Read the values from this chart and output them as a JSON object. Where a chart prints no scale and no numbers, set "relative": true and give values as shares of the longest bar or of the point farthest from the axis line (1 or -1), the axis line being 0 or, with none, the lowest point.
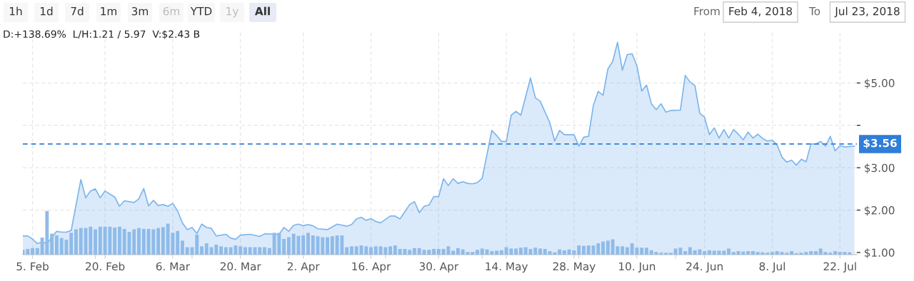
{
  "chart_data": [
    {
      "type": "area",
      "annotations": [
        "1h",
        "1d",
        "7d",
        "1m",
        "3m",
        "6m",
        "YTD",
        "1y",
        "All",
        "From",
        "Feb 4, 2018",
        "To",
        "Jul 23, 2018",
        "D:+138.69%  L/H:1.21 / 5.97  V:$2.43 B"
      ],
      "series": [
        {
          "color": "#7cb5ec",
          "x": [
            "2018-02-03",
            "2018-02-04",
            "2018-02-05",
            "2018-02-06",
            "2018-02-07",
            "2018-02-08",
            "2018-02-10",
            "2018-02-11",
            "2018-02-12",
            "2018-02-13",
            "2018-02-15",
            "2018-02-16",
            "2018-02-17",
            "2018-02-18",
            "2018-02-19",
            "2018-02-20",
            "2018-02-22",
            "2018-02-23",
            "2018-02-24",
            "2018-02-26",
            "2018-02-27",
            "2018-02-28",
            "2018-03-01",
            "2018-03-02",
            "2018-03-03",
            "2018-03-04",
            "2018-03-05",
            "2018-03-06",
            "2018-03-07",
            "2018-03-08",
            "2018-03-09",
            "2018-03-10",
            "2018-03-11",
            "2018-03-12",
            "2018-03-13",
            "2018-03-14",
            "2018-03-15",
            "2018-03-17",
            "2018-03-18",
            "2018-03-19",
            "2018-03-20",
            "2018-03-22",
            "2018-03-24",
            "2018-03-25",
            "2018-03-28",
            "2018-03-29",
            "2018-03-30",
            "2018-03-31",
            "2018-04-01",
            "2018-04-02",
            "2018-04-03",
            "2018-04-04",
            "2018-04-05",
            "2018-04-07",
            "2018-04-09",
            "2018-04-11",
            "2018-04-12",
            "2018-04-13",
            "2018-04-14",
            "2018-04-15",
            "2018-04-16",
            "2018-04-17",
            "2018-04-18",
            "2018-04-20",
            "2018-04-21",
            "2018-04-22",
            "2018-04-24",
            "2018-04-25",
            "2018-04-26",
            "2018-04-27",
            "2018-04-28",
            "2018-04-29",
            "2018-04-30",
            "2018-05-01",
            "2018-05-02",
            "2018-05-03",
            "2018-05-04",
            "2018-05-05",
            "2018-05-06",
            "2018-05-07",
            "2018-05-08",
            "2018-05-09",
            "2018-05-11",
            "2018-05-12",
            "2018-05-13",
            "2018-05-14",
            "2018-05-15",
            "2018-05-16",
            "2018-05-17",
            "2018-05-19",
            "2018-05-20",
            "2018-05-21",
            "2018-05-23",
            "2018-05-24",
            "2018-05-25",
            "2018-05-26",
            "2018-05-28",
            "2018-05-29",
            "2018-05-30",
            "2018-05-31",
            "2018-06-01",
            "2018-06-02",
            "2018-06-03",
            "2018-06-04",
            "2018-06-05",
            "2018-06-06",
            "2018-06-07",
            "2018-06-08",
            "2018-06-09",
            "2018-06-10",
            "2018-06-11",
            "2018-06-12",
            "2018-06-13",
            "2018-06-14",
            "2018-06-15",
            "2018-06-16",
            "2018-06-17",
            "2018-06-19",
            "2018-06-20",
            "2018-06-21",
            "2018-06-22",
            "2018-06-23",
            "2018-06-24",
            "2018-06-25",
            "2018-06-26",
            "2018-06-27",
            "2018-06-28",
            "2018-06-29",
            "2018-06-30",
            "2018-07-01",
            "2018-07-02",
            "2018-07-03",
            "2018-07-04",
            "2018-07-05",
            "2018-07-06",
            "2018-07-07",
            "2018-07-08",
            "2018-07-09",
            "2018-07-10",
            "2018-07-11",
            "2018-07-12",
            "2018-07-13",
            "2018-07-14",
            "2018-07-15",
            "2018-07-16",
            "2018-07-17",
            "2018-07-18",
            "2018-07-19",
            "2018-07-20",
            "2018-07-21",
            "2018-07-22",
            "2018-07-23",
            "2018-07-25"
          ],
          "values": [
            1.39,
            1.39,
            1.32,
            1.21,
            1.25,
            1.21,
            1.5,
            1.48,
            1.48,
            1.52,
            2.72,
            2.29,
            2.45,
            2.5,
            2.29,
            2.45,
            2.31,
            2.09,
            2.22,
            2.18,
            2.27,
            2.51,
            2.1,
            2.23,
            2.11,
            2.13,
            2.09,
            2.16,
            1.98,
            1.7,
            1.54,
            1.59,
            1.45,
            1.67,
            1.59,
            1.57,
            1.39,
            1.43,
            1.34,
            1.31,
            1.41,
            1.43,
            1.38,
            1.44,
            1.43,
            1.59,
            1.5,
            1.64,
            1.67,
            1.63,
            1.66,
            1.63,
            1.56,
            1.54,
            1.67,
            1.62,
            1.66,
            1.79,
            1.83,
            1.76,
            1.8,
            1.73,
            1.7,
            1.86,
            1.86,
            1.79,
            2.13,
            2.2,
            1.94,
            2.09,
            2.12,
            2.32,
            2.32,
            2.74,
            2.58,
            2.74,
            2.63,
            2.67,
            2.63,
            2.62,
            2.65,
            2.75,
            3.88,
            3.76,
            3.62,
            3.62,
            4.24,
            4.33,
            4.24,
            5.12,
            4.65,
            4.57,
            4.06,
            3.63,
            3.88,
            3.78,
            3.78,
            3.51,
            3.72,
            3.74,
            4.47,
            4.8,
            4.71,
            5.33,
            5.51,
            5.96,
            5.3,
            5.67,
            5.69,
            5.41,
            4.81,
            4.95,
            4.51,
            4.37,
            4.51,
            4.31,
            4.35,
            4.36,
            5.18,
            5.02,
            4.94,
            4.29,
            4.19,
            3.78,
            3.94,
            3.7,
            3.9,
            3.7,
            3.9,
            3.79,
            3.66,
            3.84,
            3.7,
            3.79,
            3.69,
            3.63,
            3.65,
            3.54,
            3.25,
            3.13,
            3.18,
            3.06,
            3.2,
            3.14,
            3.56,
            3.56,
            3.62,
            3.51,
            3.74,
            3.4,
            3.52,
            3.49,
            3.51
          ]
        }
      ],
      "xlim": [
        "2018-02-03",
        "2018-07-25T12:00"
      ],
      "xticks": [
        {
          "value": "2018-02-05",
          "label": "5. Feb"
        },
        {
          "value": "2018-02-20",
          "label": "20. Feb"
        },
        {
          "value": "2018-03-06",
          "label": "6. Mar"
        },
        {
          "value": "2018-03-20",
          "label": "20. Mar"
        },
        {
          "value": "2018-04-02",
          "label": "2. Apr"
        },
        {
          "value": "2018-04-16",
          "label": "16. Apr"
        },
        {
          "value": "2018-04-30",
          "label": "30. Apr"
        },
        {
          "value": "2018-05-14",
          "label": "14. May"
        },
        {
          "value": "2018-05-28",
          "label": "28. May"
        },
        {
          "value": "2018-06-10",
          "label": "10. Jun"
        },
        {
          "value": "2018-06-24",
          "label": "24. Jun"
        },
        {
          "value": "2018-07-08",
          "label": "8. Jul"
        },
        {
          "value": "2018-07-22",
          "label": "22. Jul"
        }
      ],
      "ylim": [
        0.95,
        6.2
      ],
      "yticks": [
        {
          "value": 1,
          "label": "$1.00"
        },
        {
          "value": 2,
          "label": "$2.00"
        },
        {
          "value": 3,
          "label": "$3.00"
        },
        {
          "value": 4,
          "label": null
        },
        {
          "value": 5,
          "label": "$5.00"
        }
      ],
      "ref_lines": [
        {
          "axis": "y",
          "value": 3.56,
          "label": "$3.56",
          "color": "#2f7ed8",
          "line_style": "dashed"
        }
      ],
      "grid": true
    },
    {
      "type": "bar",
      "relative": true,
      "tick_labels": false,
      "color": "#8fbbe9",
      "xlim": [
        "2018-02-03",
        "2018-07-25T12:00"
      ],
      "x": [
        "2018-02-03",
        "2018-02-04",
        "2018-02-05",
        "2018-02-06",
        "2018-02-07",
        "2018-02-08",
        "2018-02-09",
        "2018-02-10",
        "2018-02-11",
        "2018-02-12",
        "2018-02-13",
        "2018-02-14",
        "2018-02-15",
        "2018-02-16",
        "2018-02-17",
        "2018-02-18",
        "2018-02-19",
        "2018-02-20",
        "2018-02-21",
        "2018-02-22",
        "2018-02-23",
        "2018-02-24",
        "2018-02-25",
        "2018-02-26",
        "2018-02-27",
        "2018-02-28",
        "2018-03-01",
        "2018-03-02",
        "2018-03-03",
        "2018-03-04",
        "2018-03-05",
        "2018-03-06",
        "2018-03-07",
        "2018-03-08",
        "2018-03-09",
        "2018-03-10",
        "2018-03-11",
        "2018-03-12",
        "2018-03-13",
        "2018-03-14",
        "2018-03-15",
        "2018-03-16",
        "2018-03-17",
        "2018-03-18",
        "2018-03-19",
        "2018-03-20",
        "2018-03-21",
        "2018-03-22",
        "2018-03-23",
        "2018-03-24",
        "2018-03-25",
        "2018-03-26",
        "2018-03-27",
        "2018-03-28",
        "2018-03-29",
        "2018-03-30",
        "2018-03-31",
        "2018-04-01",
        "2018-04-02",
        "2018-04-03",
        "2018-04-04",
        "2018-04-05",
        "2018-04-06",
        "2018-04-07",
        "2018-04-08",
        "2018-04-09",
        "2018-04-10",
        "2018-04-11",
        "2018-04-12",
        "2018-04-13",
        "2018-04-14",
        "2018-04-15",
        "2018-04-16",
        "2018-04-17",
        "2018-04-18",
        "2018-04-19",
        "2018-04-20",
        "2018-04-21",
        "2018-04-22",
        "2018-04-23",
        "2018-04-24",
        "2018-04-25",
        "2018-04-26",
        "2018-04-27",
        "2018-04-28",
        "2018-04-29",
        "2018-04-30",
        "2018-05-01",
        "2018-05-02",
        "2018-05-03",
        "2018-05-04",
        "2018-05-05",
        "2018-05-06",
        "2018-05-07",
        "2018-05-08",
        "2018-05-09",
        "2018-05-10",
        "2018-05-11",
        "2018-05-12",
        "2018-05-13",
        "2018-05-14",
        "2018-05-15",
        "2018-05-16",
        "2018-05-17",
        "2018-05-18",
        "2018-05-19",
        "2018-05-20",
        "2018-05-21",
        "2018-05-22",
        "2018-05-23",
        "2018-05-24",
        "2018-05-25",
        "2018-05-26",
        "2018-05-27",
        "2018-05-28",
        "2018-05-29",
        "2018-05-30",
        "2018-05-31",
        "2018-06-01",
        "2018-06-02",
        "2018-06-03",
        "2018-06-04",
        "2018-06-05",
        "2018-06-06",
        "2018-06-07",
        "2018-06-08",
        "2018-06-09",
        "2018-06-10",
        "2018-06-11",
        "2018-06-12",
        "2018-06-13",
        "2018-06-14",
        "2018-06-15",
        "2018-06-16",
        "2018-06-17",
        "2018-06-18",
        "2018-06-19",
        "2018-06-20",
        "2018-06-21",
        "2018-06-22",
        "2018-06-23",
        "2018-06-24",
        "2018-06-25",
        "2018-06-26",
        "2018-06-27",
        "2018-06-28",
        "2018-06-29",
        "2018-06-30",
        "2018-07-01",
        "2018-07-02",
        "2018-07-03",
        "2018-07-04",
        "2018-07-05",
        "2018-07-06",
        "2018-07-07",
        "2018-07-08",
        "2018-07-09",
        "2018-07-10",
        "2018-07-11",
        "2018-07-12",
        "2018-07-13",
        "2018-07-14",
        "2018-07-15",
        "2018-07-16",
        "2018-07-17",
        "2018-07-18",
        "2018-07-19",
        "2018-07-20",
        "2018-07-21",
        "2018-07-22",
        "2018-07-23",
        "2018-07-24"
      ],
      "values": [
        0.11,
        0.13,
        0.15,
        0.15,
        0.39,
        1,
        0.48,
        0.44,
        0.38,
        0.34,
        0.5,
        0.58,
        0.61,
        0.61,
        0.64,
        0.58,
        0.64,
        0.64,
        0.64,
        0.62,
        0.64,
        0.59,
        0.52,
        0.58,
        0.61,
        0.59,
        0.59,
        0.58,
        0.61,
        0.63,
        0.71,
        0.5,
        0.54,
        0.32,
        0.17,
        0.17,
        0.46,
        0.19,
        0.26,
        0.17,
        0.23,
        0.19,
        0.17,
        0.17,
        0.21,
        0.19,
        0.17,
        0.17,
        0.17,
        0.17,
        0.17,
        0.15,
        0.5,
        0.5,
        0.36,
        0.4,
        0.48,
        0.43,
        0.44,
        0.5,
        0.44,
        0.42,
        0.4,
        0.4,
        0.42,
        0.44,
        0.44,
        0.17,
        0.19,
        0.19,
        0.21,
        0.19,
        0.17,
        0.19,
        0.19,
        0.17,
        0.19,
        0.21,
        0.13,
        0.13,
        0.11,
        0.15,
        0.15,
        0.11,
        0.11,
        0.13,
        0.13,
        0.13,
        0.19,
        0.09,
        0.15,
        0.12,
        0.06,
        0.06,
        0.11,
        0.14,
        0.12,
        0.08,
        0.09,
        0.1,
        0.17,
        0.14,
        0.14,
        0.16,
        0.17,
        0.13,
        0.16,
        0.14,
        0.13,
        0.08,
        0.05,
        0.12,
        0.1,
        0.12,
        0.1,
        0.21,
        0.2,
        0.21,
        0.21,
        0.26,
        0.3,
        0.32,
        0.35,
        0.19,
        0.19,
        0.17,
        0.26,
        0.16,
        0.16,
        0.16,
        0.1,
        0.06,
        0.04,
        0.04,
        0.04,
        0.14,
        0.16,
        0.08,
        0.17,
        0.1,
        0.12,
        0.08,
        0.1,
        0.09,
        0.09,
        0.09,
        0.14,
        0.06,
        0.08,
        0.07,
        0.08,
        0.08,
        0.06,
        0.05,
        0.04,
        0.06,
        0.08,
        0.06,
        0.04,
        0.08,
        0.03,
        0.04,
        0.06,
        0.08,
        0.08,
        0.14,
        0.06,
        0.04,
        0.08,
        0.06,
        0.06,
        0.05
      ]
    }
  ]
}
